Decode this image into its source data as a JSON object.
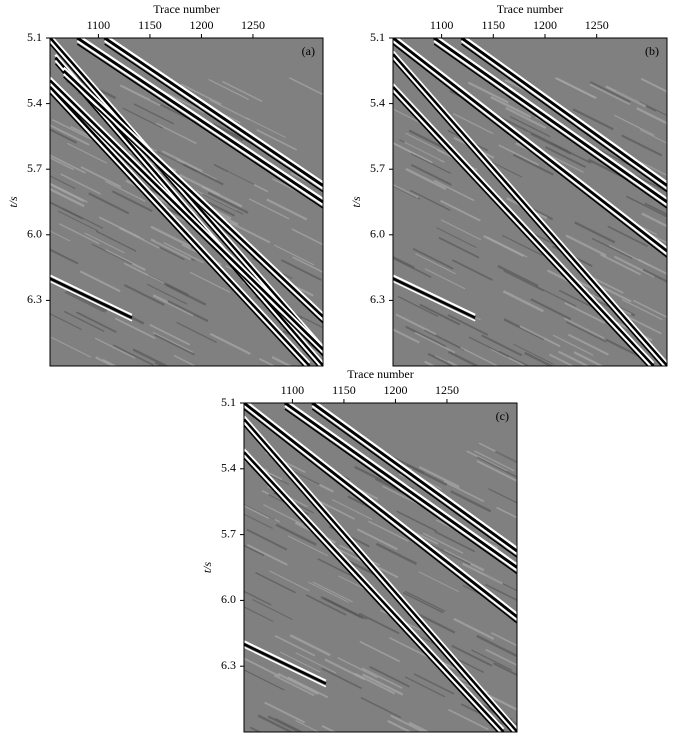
{
  "chart_data": [
    {
      "type": "seismic",
      "xlabel": "Trace number",
      "ylabel": "t/s",
      "panel_label": "(a)",
      "xlim": [
        1053,
        1318
      ],
      "xticks": [
        1100,
        1150,
        1200,
        1250
      ],
      "ylim": [
        5.1,
        6.6
      ],
      "yticks": [
        5.1,
        5.4,
        5.7,
        {
          "value": 6,
          "label": "6.0"
        },
        6.3
      ]
    },
    {
      "type": "seismic",
      "xlabel": "Trace number",
      "ylabel": "t/s",
      "panel_label": "(b)",
      "xlim": [
        1053,
        1318
      ],
      "xticks": [
        1100,
        1150,
        1200,
        1250
      ],
      "ylim": [
        5.1,
        6.6
      ],
      "yticks": [
        5.1,
        5.4,
        5.7,
        {
          "value": 6,
          "label": "6.0"
        },
        6.3
      ]
    },
    {
      "type": "seismic",
      "xlabel": "Trace number",
      "ylabel": "t/s",
      "panel_label": "(c)",
      "xlim": [
        1053,
        1318
      ],
      "xticks": [
        1100,
        1150,
        1200,
        1250
      ],
      "ylim": [
        5.1,
        6.6
      ],
      "yticks": [
        5.1,
        5.4,
        5.7,
        {
          "value": 6,
          "label": "6.0"
        },
        6.3
      ]
    }
  ]
}
